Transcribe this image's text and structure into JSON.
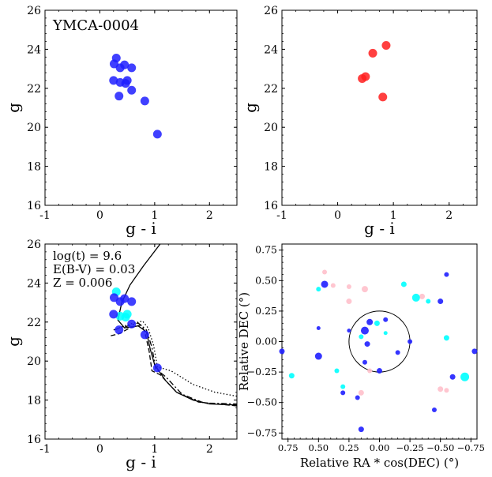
{
  "panels": {
    "top_left": {
      "title": "YMCA-0004",
      "xlabel": "g - i",
      "ylabel": "g",
      "xticks": [
        -1,
        0,
        1,
        2
      ],
      "yticks": [
        16,
        18,
        20,
        22,
        24,
        26
      ]
    },
    "top_right": {
      "xlabel": "g - i",
      "ylabel": "g",
      "xticks": [
        -1,
        0,
        1,
        2
      ],
      "yticks": [
        16,
        18,
        20,
        22,
        24,
        26
      ]
    },
    "bottom_left": {
      "annotation": [
        "log(t) = 9.6",
        "E(B-V) = 0.03",
        "Z = 0.006"
      ],
      "xlabel": "g - i",
      "ylabel": "g",
      "xticks": [
        -1,
        0,
        1,
        2
      ],
      "yticks": [
        16,
        18,
        20,
        22,
        24,
        26
      ]
    },
    "bottom_right": {
      "xlabel": "Relative RA * cos(DEC) (°)",
      "ylabel": "Relative DEC (°)",
      "xticks": [
        "0.75",
        "0.50",
        "0.25",
        "0.00",
        "−0.25",
        "−0.50",
        "−0.75"
      ],
      "yticks": [
        "−0.75",
        "−0.50",
        "−0.25",
        "0.00",
        "0.25",
        "0.50",
        "0.75"
      ]
    }
  },
  "chart_data": [
    {
      "type": "scatter",
      "panel": "top_left",
      "title": "YMCA-0004",
      "xlabel": "g - i",
      "ylabel": "g",
      "xlim": [
        -1,
        2.5
      ],
      "ylim": [
        26,
        16
      ],
      "color": "#1f1fff",
      "points": [
        [
          1.05,
          19.65
        ],
        [
          0.82,
          21.35
        ],
        [
          0.35,
          21.6
        ],
        [
          0.58,
          21.9
        ],
        [
          0.47,
          22.25
        ],
        [
          0.37,
          22.3
        ],
        [
          0.25,
          22.4
        ],
        [
          0.5,
          22.4
        ],
        [
          0.37,
          23.05
        ],
        [
          0.58,
          23.05
        ],
        [
          0.45,
          23.2
        ],
        [
          0.26,
          23.25
        ],
        [
          0.3,
          23.55
        ]
      ]
    },
    {
      "type": "scatter",
      "panel": "top_right",
      "xlabel": "g - i",
      "ylabel": "g",
      "xlim": [
        -1,
        2.5
      ],
      "ylim": [
        26,
        16
      ],
      "color": "#ff1f1f",
      "points": [
        [
          0.81,
          21.55
        ],
        [
          0.44,
          22.5
        ],
        [
          0.5,
          22.6
        ],
        [
          0.63,
          23.8
        ],
        [
          0.87,
          24.2
        ]
      ]
    },
    {
      "type": "line",
      "panel": "bottom_left",
      "xlabel": "g - i",
      "ylabel": "g",
      "xlim": [
        -1,
        2.5
      ],
      "ylim": [
        26,
        16
      ],
      "annotation": [
        "log(t) = 9.6",
        "E(B-V) = 0.03",
        "Z = 0.006"
      ],
      "series": [
        {
          "name": "isochrone-solid",
          "dash": "solid",
          "points": [
            [
              1.1,
              26
            ],
            [
              0.8,
              24.9
            ],
            [
              0.55,
              23.9
            ],
            [
              0.4,
              23
            ],
            [
              0.33,
              22.1
            ],
            [
              0.45,
              21.7
            ],
            [
              0.7,
              21.8
            ],
            [
              0.85,
              21.5
            ],
            [
              0.92,
              20.6
            ],
            [
              1.0,
              19.8
            ],
            [
              1.2,
              19.0
            ],
            [
              1.4,
              18.4
            ],
            [
              1.7,
              18.0
            ],
            [
              2.0,
              17.8
            ],
            [
              2.5,
              17.75
            ]
          ]
        },
        {
          "name": "isochrone-dashed",
          "dash": "dashed",
          "points": [
            [
              0.2,
              21.3
            ],
            [
              0.35,
              21.4
            ],
            [
              0.55,
              21.7
            ],
            [
              0.75,
              21.85
            ],
            [
              0.82,
              21.5
            ],
            [
              0.9,
              20.5
            ],
            [
              0.95,
              19.5
            ],
            [
              1.1,
              19.3
            ],
            [
              1.4,
              18.4
            ],
            [
              1.8,
              17.9
            ],
            [
              2.5,
              17.7
            ]
          ]
        },
        {
          "name": "isochrone-dashdot",
          "dash": "dashdot",
          "points": [
            [
              0.25,
              21.6
            ],
            [
              0.45,
              21.75
            ],
            [
              0.7,
              21.95
            ],
            [
              0.85,
              21.6
            ],
            [
              0.95,
              20.7
            ],
            [
              1.02,
              19.6
            ],
            [
              1.2,
              19.2
            ],
            [
              1.5,
              18.3
            ],
            [
              1.9,
              17.85
            ],
            [
              2.5,
              17.8
            ]
          ]
        },
        {
          "name": "isochrone-dotted",
          "dash": "dotted",
          "points": [
            [
              0.35,
              21.7
            ],
            [
              0.55,
              21.9
            ],
            [
              0.78,
              22.05
            ],
            [
              0.88,
              21.7
            ],
            [
              0.98,
              20.8
            ],
            [
              1.05,
              19.7
            ],
            [
              1.3,
              19.5
            ],
            [
              1.7,
              18.8
            ],
            [
              2.1,
              18.4
            ],
            [
              2.5,
              18.2
            ]
          ]
        }
      ],
      "blue_points": [
        [
          1.05,
          19.65
        ],
        [
          0.82,
          21.35
        ],
        [
          0.35,
          21.6
        ],
        [
          0.58,
          21.9
        ],
        [
          0.25,
          22.4
        ],
        [
          0.37,
          23.05
        ],
        [
          0.58,
          23.05
        ],
        [
          0.45,
          23.2
        ],
        [
          0.26,
          23.25
        ]
      ],
      "cyan_points": [
        [
          0.47,
          22.25
        ],
        [
          0.37,
          22.3
        ],
        [
          0.5,
          22.4
        ],
        [
          0.3,
          23.55
        ]
      ]
    },
    {
      "type": "scatter",
      "panel": "bottom_right",
      "xlabel": "Relative RA * cos(DEC) (°)",
      "ylabel": "Relative DEC (°)",
      "xlim": [
        0.8,
        -0.8
      ],
      "ylim": [
        -0.8,
        0.8
      ],
      "circle_radius": 0.25,
      "series": [
        {
          "name": "blue",
          "color": "#1f1fff",
          "points": [
            [
              0.45,
              0.47,
              9
            ],
            [
              -0.5,
              0.33,
              7
            ],
            [
              -0.55,
              0.55,
              6
            ],
            [
              -0.78,
              -0.08,
              7
            ],
            [
              0.8,
              -0.08,
              7
            ],
            [
              0.5,
              -0.12,
              9
            ],
            [
              0.25,
              0.09,
              5
            ],
            [
              0.5,
              0.11,
              5
            ],
            [
              0.3,
              -0.42,
              6
            ],
            [
              0.18,
              -0.46,
              6
            ],
            [
              0.12,
              0.09,
              10
            ],
            [
              0.08,
              0.16,
              8
            ],
            [
              0.1,
              -0.02,
              7
            ],
            [
              0.0,
              -0.24,
              7
            ],
            [
              -0.05,
              0.18,
              6
            ],
            [
              -0.15,
              -0.09,
              6
            ],
            [
              -0.25,
              0.0,
              6
            ],
            [
              -0.6,
              -0.29,
              7
            ],
            [
              -0.45,
              -0.56,
              6
            ],
            [
              0.15,
              -0.72,
              7
            ],
            [
              0.12,
              -0.17,
              6
            ]
          ]
        },
        {
          "name": "cyan",
          "color": "#00ffff",
          "points": [
            [
              0.72,
              -0.28,
              7
            ],
            [
              0.5,
              0.43,
              6
            ],
            [
              0.35,
              -0.24,
              6
            ],
            [
              0.3,
              -0.37,
              6
            ],
            [
              0.15,
              0.04,
              6
            ],
            [
              0.02,
              0.15,
              7
            ],
            [
              -0.05,
              0.07,
              5
            ],
            [
              -0.2,
              0.47,
              7
            ],
            [
              -0.3,
              0.36,
              10
            ],
            [
              -0.4,
              0.33,
              6
            ],
            [
              -0.7,
              -0.29,
              11
            ],
            [
              -0.55,
              0.03,
              7
            ]
          ]
        },
        {
          "name": "pink",
          "color": "#ffc0cb",
          "points": [
            [
              0.25,
              0.33,
              7
            ],
            [
              0.38,
              0.46,
              6
            ],
            [
              0.25,
              0.45,
              6
            ],
            [
              0.12,
              0.43,
              8
            ],
            [
              0.45,
              0.57,
              6
            ],
            [
              -0.35,
              0.37,
              7
            ],
            [
              -0.5,
              -0.39,
              7
            ],
            [
              0.15,
              -0.42,
              7
            ],
            [
              0.08,
              -0.24,
              6
            ],
            [
              -0.55,
              -0.4,
              6
            ]
          ]
        }
      ]
    }
  ]
}
